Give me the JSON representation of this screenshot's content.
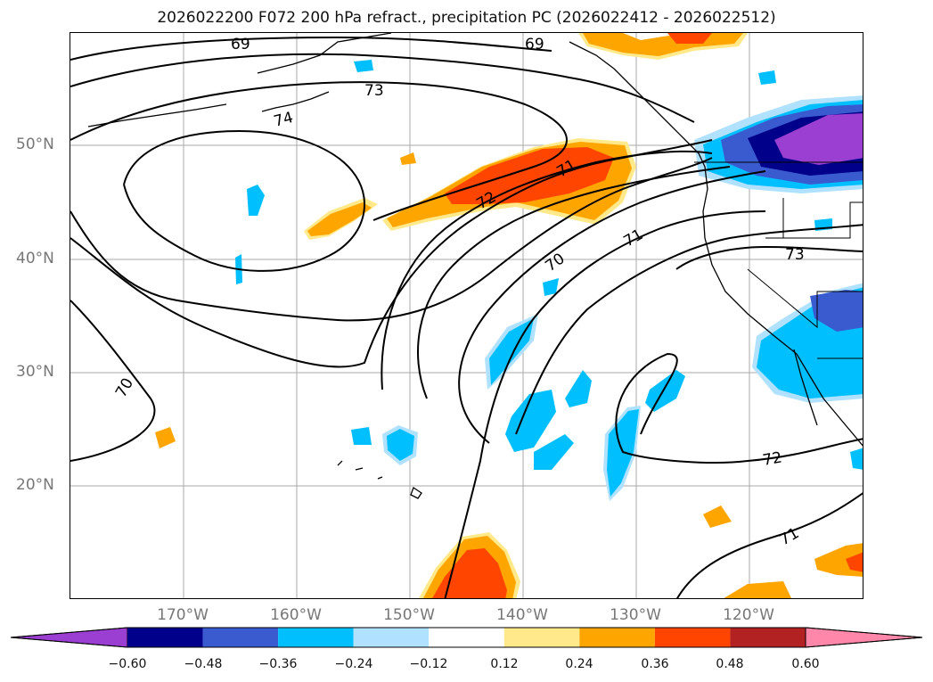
{
  "title": "2026022200 F072 200 hPa refract., precipitation PC (2026022412 - 2026022512)",
  "latitude_labels": [
    "50°N",
    "40°N",
    "30°N",
    "20°N"
  ],
  "longitude_labels": [
    "170°W",
    "160°W",
    "150°W",
    "140°W",
    "130°W",
    "120°W"
  ],
  "contour_labels": [
    "69",
    "69",
    "73",
    "74",
    "72",
    "71",
    "71",
    "70",
    "73",
    "70",
    "72",
    "71"
  ],
  "colorbar": {
    "tick_labels": [
      "−0.60",
      "−0.48",
      "−0.36",
      "−0.24",
      "−0.12",
      "0.12",
      "0.24",
      "0.36",
      "0.48",
      "0.60"
    ],
    "colors": [
      "#9a3fd1",
      "#00008b",
      "#3a5bd0",
      "#00bfff",
      "#b0e2ff",
      "#ffffff",
      "#ffe98a",
      "#ffa500",
      "#ff4500",
      "#b22222",
      "#ff88aa"
    ]
  }
}
